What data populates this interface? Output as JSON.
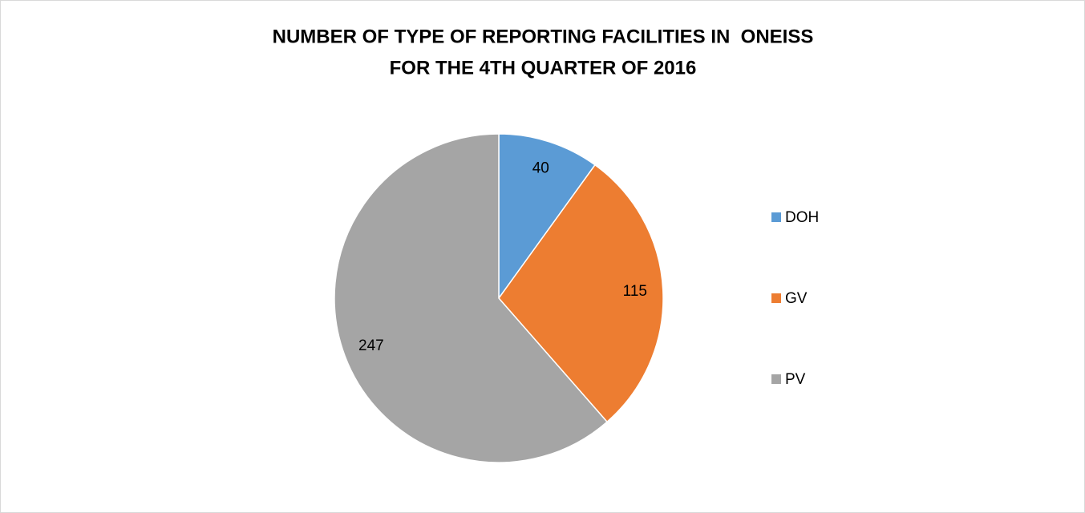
{
  "chart_data": {
    "type": "pie",
    "title": [
      "NUMBER OF TYPE OF REPORTING FACILITIES IN  ONEISS",
      "FOR THE 4TH QUARTER OF 2016"
    ],
    "categories": [
      "DOH",
      "GV",
      "PV"
    ],
    "values": [
      40,
      115,
      247
    ],
    "colors": [
      "#5b9bd5",
      "#ed7d31",
      "#a5a5a5"
    ],
    "legend": "right"
  }
}
